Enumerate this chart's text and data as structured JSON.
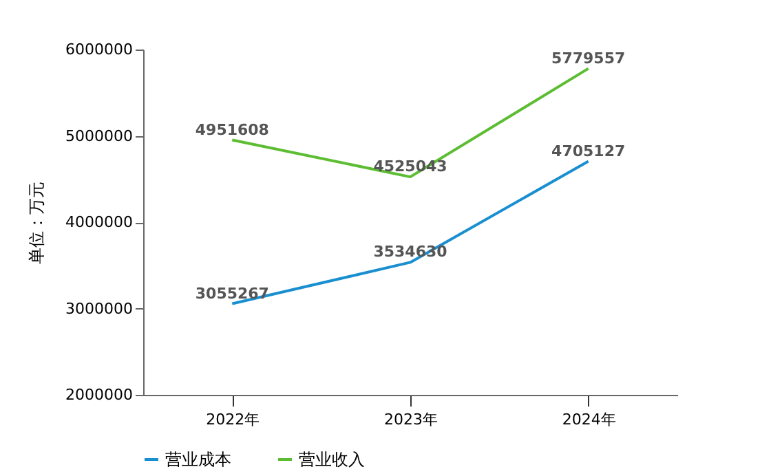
{
  "chart_data": {
    "type": "line",
    "ylabel": "单位：万元",
    "categories": [
      "2022年",
      "2023年",
      "2024年"
    ],
    "series": [
      {
        "name": "营业成本",
        "color": "#1a8fd0",
        "values": [
          3055267,
          3534630,
          4705127
        ]
      },
      {
        "name": "营业收入",
        "color": "#5cbd32",
        "values": [
          4951608,
          4525043,
          5779557
        ]
      }
    ],
    "ylim": [
      2000000,
      6000000
    ],
    "yticks": [
      2000000,
      3000000,
      4000000,
      5000000,
      6000000
    ],
    "grid": false,
    "legend": "bottom",
    "data_labels": true,
    "marker": "none",
    "line_style": "solid"
  }
}
